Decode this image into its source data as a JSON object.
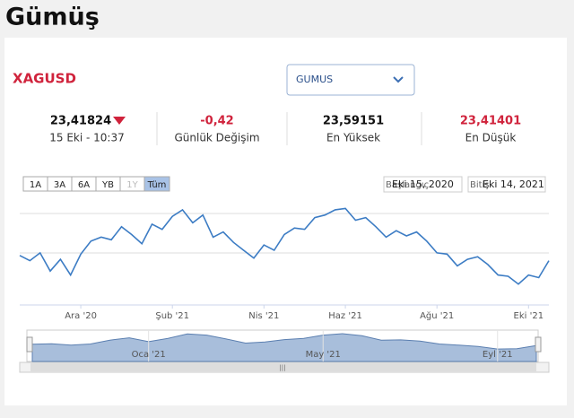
{
  "header": {
    "title": "Gümüş"
  },
  "widget": {
    "symbol": "XAGUSD",
    "dropdown": "GUMUS",
    "stats": [
      {
        "value": "23,41824",
        "label": "15 Eki - 10:37"
      },
      {
        "value": "-0,42",
        "label": "Günlük Değişim"
      },
      {
        "value": "23,59151",
        "label": "En Yüksek"
      },
      {
        "value": "23,41401",
        "label": "En Düşük"
      }
    ],
    "ranges": [
      "1A",
      "3A",
      "6A",
      "YB",
      "1Y",
      "Tüm"
    ],
    "start": {
      "label": "Başlangıç",
      "date": "Eki 15, 2020"
    },
    "end": {
      "label": "Bitiş",
      "date": "Eki 14, 2021"
    }
  },
  "chart_data": [
    {
      "type": "line",
      "color": "#3c7cc4",
      "ylim": [
        20,
        28.6
      ],
      "categories": [
        null,
        null,
        null,
        null,
        null,
        null,
        "Ara '20",
        null,
        null,
        null,
        null,
        null,
        null,
        null,
        null,
        "Şub '21",
        null,
        null,
        null,
        null,
        null,
        null,
        null,
        null,
        "Nis '21",
        null,
        null,
        null,
        null,
        null,
        null,
        null,
        "Haz '21",
        null,
        null,
        null,
        null,
        null,
        null,
        null,
        null,
        "Ağu '21",
        null,
        null,
        null,
        null,
        null,
        null,
        null,
        null,
        "Eki '21",
        null,
        null
      ],
      "values": [
        23.8,
        23.4,
        24.0,
        22.6,
        23.5,
        22.3,
        23.9,
        24.9,
        25.2,
        25.0,
        26.0,
        25.4,
        24.7,
        26.2,
        25.8,
        26.8,
        27.3,
        26.3,
        26.9,
        25.2,
        25.6,
        24.8,
        24.2,
        23.6,
        24.6,
        24.2,
        25.4,
        25.9,
        25.8,
        26.7,
        26.9,
        27.3,
        27.4,
        26.5,
        26.7,
        26.0,
        25.2,
        25.7,
        25.3,
        25.6,
        24.9,
        24.0,
        23.9,
        23.0,
        23.5,
        23.7,
        23.1,
        22.3,
        22.2,
        21.6,
        22.3,
        22.1,
        23.4
      ]
    },
    {
      "type": "area",
      "color": "#a8bedb",
      "ylim": [
        18,
        28.6
      ],
      "categories": [
        null,
        null,
        null,
        null,
        null,
        null,
        "Oca '21",
        null,
        null,
        null,
        null,
        null,
        null,
        null,
        null,
        "May '21",
        null,
        null,
        null,
        null,
        null,
        null,
        null,
        null,
        "Eyl '21",
        null,
        null
      ],
      "values": [
        23.8,
        24.0,
        23.5,
        23.9,
        25.2,
        26.0,
        24.7,
        25.8,
        27.3,
        26.9,
        25.6,
        24.2,
        24.6,
        25.4,
        25.8,
        26.9,
        27.4,
        26.7,
        25.2,
        25.3,
        24.9,
        23.9,
        23.5,
        23.1,
        22.2,
        22.3,
        23.4
      ]
    }
  ]
}
